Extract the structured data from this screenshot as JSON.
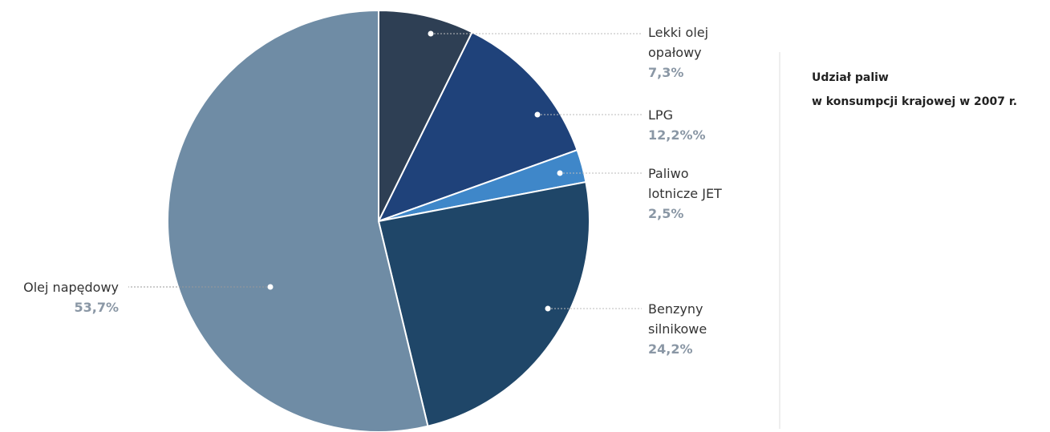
{
  "chart_data": {
    "type": "pie",
    "title": [
      "Udział paliw",
      "w konsumpcji krajowej w 2007 r."
    ],
    "categories": [
      "Lekki olej opałowy",
      "LPG",
      "Paliwo lotnicze JET",
      "Benzyny silnikowe",
      "Olej napędowy"
    ],
    "values": [
      7.3,
      12.2,
      2.5,
      24.2,
      53.7
    ],
    "value_labels": [
      "7,3%",
      "12,2%%",
      "2,5%",
      "24,2%",
      "53,7%"
    ],
    "colors": [
      "#2e3f54",
      "#1f427a",
      "#3f87c9",
      "#1f4668",
      "#6f8ca5"
    ]
  }
}
